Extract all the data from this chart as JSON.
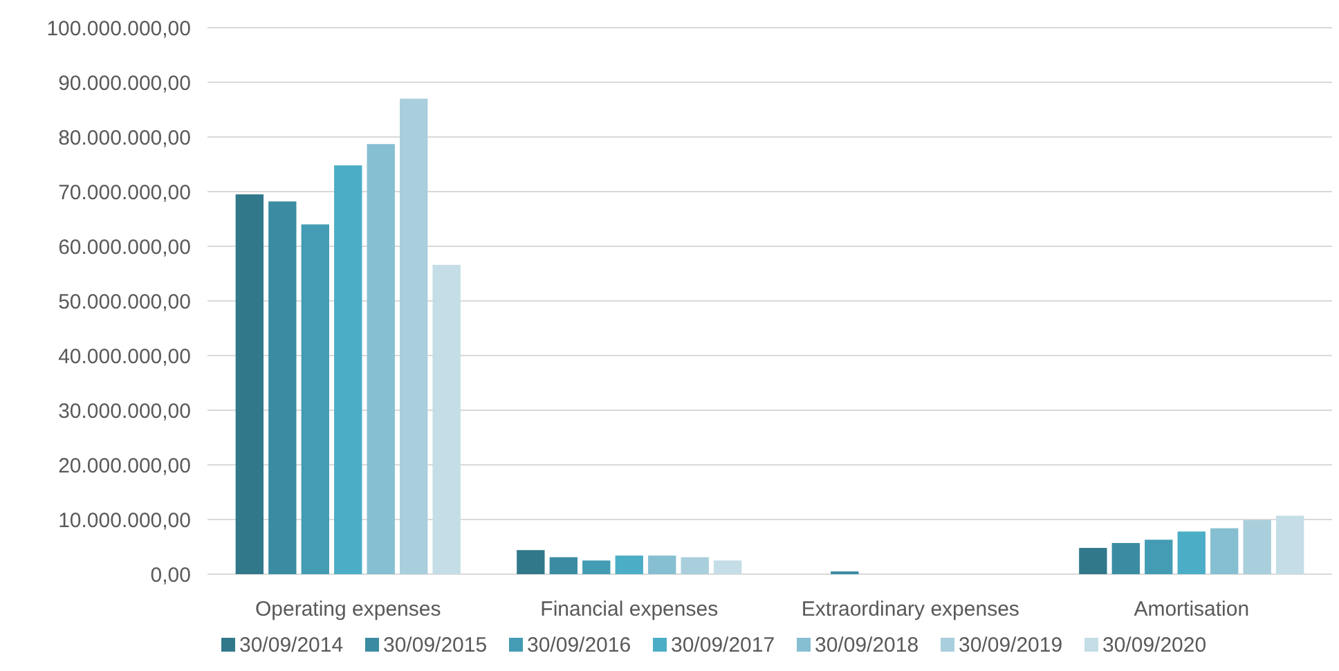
{
  "chart_data": {
    "type": "bar",
    "categories": [
      "Operating expenses",
      "Financial expenses",
      "Extraordinary expenses",
      "Amortisation"
    ],
    "series": [
      {
        "name": "30/09/2014",
        "color": "#31788a",
        "values": [
          69500000,
          4400000,
          0,
          4800000
        ]
      },
      {
        "name": "30/09/2015",
        "color": "#3b8ba2",
        "values": [
          68200000,
          3100000,
          500000,
          5700000
        ]
      },
      {
        "name": "30/09/2016",
        "color": "#439cb3",
        "values": [
          64000000,
          2500000,
          0,
          6300000
        ]
      },
      {
        "name": "30/09/2017",
        "color": "#4badc6",
        "values": [
          74800000,
          3400000,
          0,
          7800000
        ]
      },
      {
        "name": "30/09/2018",
        "color": "#86bfd1",
        "values": [
          78700000,
          3400000,
          0,
          8400000
        ]
      },
      {
        "name": "30/09/2019",
        "color": "#a9cedc",
        "values": [
          87000000,
          3100000,
          0,
          9900000
        ]
      },
      {
        "name": "30/09/2020",
        "color": "#c4dde6",
        "values": [
          56600000,
          2500000,
          0,
          10700000
        ]
      }
    ],
    "ylim": [
      0,
      100000000
    ],
    "yticks": [
      {
        "value": 0,
        "label": "0,00"
      },
      {
        "value": 10000000,
        "label": "10.000.000,00"
      },
      {
        "value": 20000000,
        "label": "20.000.000,00"
      },
      {
        "value": 30000000,
        "label": "30.000.000,00"
      },
      {
        "value": 40000000,
        "label": "40.000.000,00"
      },
      {
        "value": 50000000,
        "label": "50.000.000,00"
      },
      {
        "value": 60000000,
        "label": "60.000.000,00"
      },
      {
        "value": 70000000,
        "label": "70.000.000,00"
      },
      {
        "value": 80000000,
        "label": "80.000.000,00"
      },
      {
        "value": 90000000,
        "label": "90.000.000,00"
      },
      {
        "value": 100000000,
        "label": "100.000.000,00"
      }
    ],
    "grid": "y",
    "legend": "bottom"
  }
}
